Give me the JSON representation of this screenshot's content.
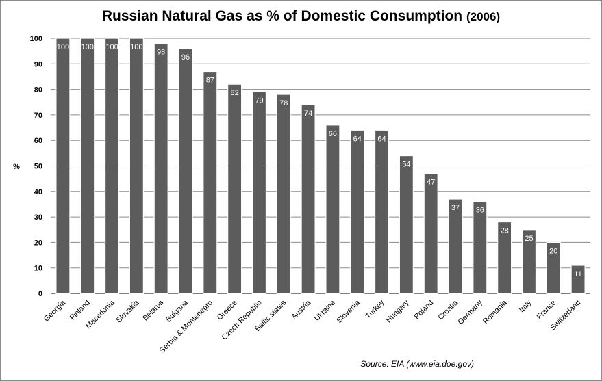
{
  "chart_data": {
    "type": "bar",
    "title": "Russian Natural Gas as % of Domestic Consumption",
    "title_suffix": "(2006)",
    "xlabel": "",
    "ylabel": "%",
    "ylim": [
      0,
      100
    ],
    "yticks": [
      0,
      10,
      20,
      30,
      40,
      50,
      60,
      70,
      80,
      90,
      100
    ],
    "grid": true,
    "categories": [
      "Georgia",
      "Finland",
      "Macedonia",
      "Slovakia",
      "Belarus",
      "Bulgaria",
      "Serbia & Montenegro",
      "Greece",
      "Czech Republic",
      "Baltic states",
      "Austria",
      "Ukraine",
      "Slovenia",
      "Turkey",
      "Hungary",
      "Poland",
      "Croatia",
      "Germany",
      "Romania",
      "Italy",
      "France",
      "Switzerland"
    ],
    "values": [
      100,
      100,
      100,
      100,
      98,
      96,
      87,
      82,
      79,
      78,
      74,
      66,
      64,
      64,
      54,
      47,
      37,
      36,
      28,
      25,
      20,
      11
    ],
    "source": "Source: EIA (www.eia.doe.gov)",
    "colors": {
      "bar": "#5c5c5c",
      "bar_edge": "#ffffff",
      "grid": "#8a8a8a",
      "label": "#ffffff"
    }
  }
}
